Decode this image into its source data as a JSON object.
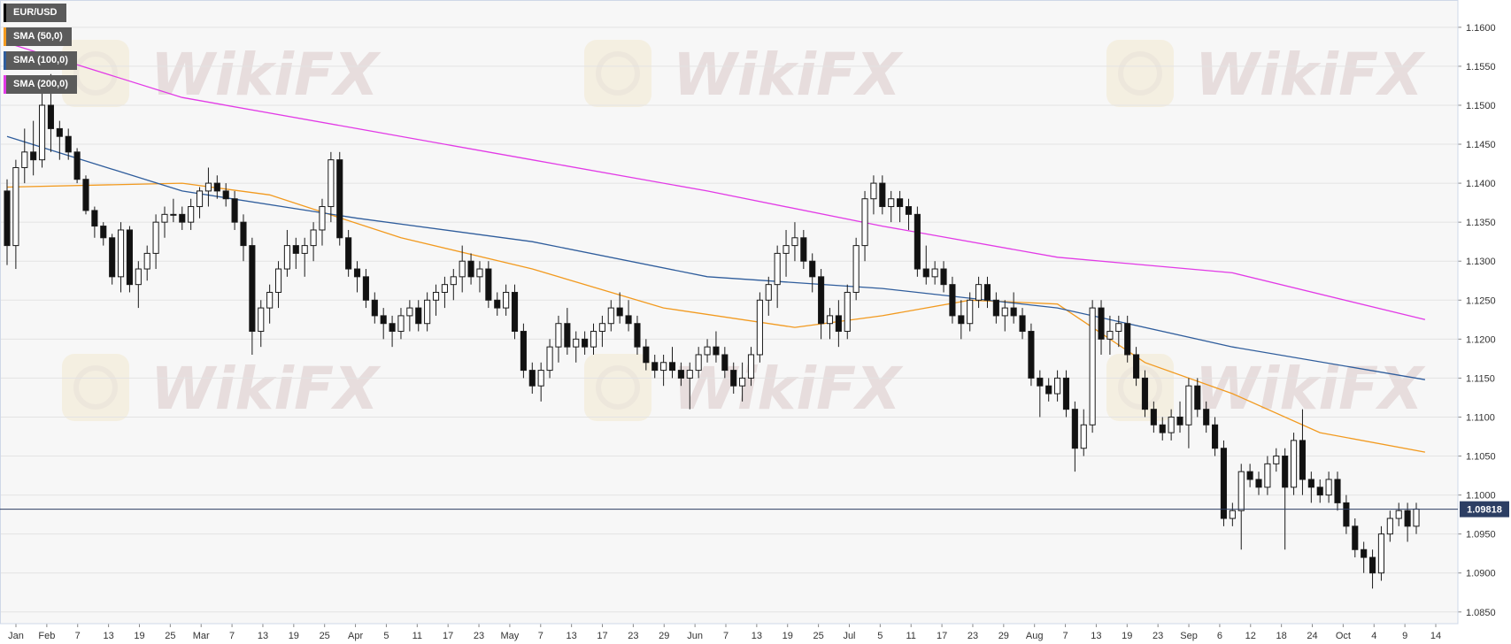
{
  "legend": [
    {
      "label": "EUR/USD",
      "color": "#000000"
    },
    {
      "label": "SMA (50,0)",
      "color": "#f29a1f"
    },
    {
      "label": "SMA (100,0)",
      "color": "#2f5d9c"
    },
    {
      "label": "SMA (200,0)",
      "color": "#e23ae6"
    }
  ],
  "watermark": {
    "text": "WikiFX"
  },
  "chart_data": {
    "type": "candlestick",
    "symbol": "EUR/USD",
    "current_price": 1.09818,
    "current_price_label": "1.09818",
    "ylim": [
      1.0835,
      1.1635
    ],
    "y_ticks": [
      "1.0850",
      "1.0900",
      "1.0950",
      "1.1000",
      "1.1050",
      "1.1100",
      "1.1150",
      "1.1200",
      "1.1250",
      "1.1300",
      "1.1350",
      "1.1400",
      "1.1450",
      "1.1500",
      "1.1550",
      "1.1600"
    ],
    "x_ticks": [
      "Jan",
      "Feb",
      "7",
      "13",
      "19",
      "25",
      "Mar",
      "7",
      "13",
      "19",
      "25",
      "Apr",
      "5",
      "11",
      "17",
      "23",
      "May",
      "7",
      "13",
      "17",
      "23",
      "29",
      "Jun",
      "7",
      "13",
      "19",
      "25",
      "Jul",
      "5",
      "11",
      "17",
      "23",
      "29",
      "Aug",
      "7",
      "13",
      "19",
      "23",
      "Sep",
      "6",
      "12",
      "18",
      "24",
      "Oct",
      "4",
      "9",
      "14"
    ],
    "candles": [
      [
        1.139,
        1.1405,
        1.1295,
        1.132
      ],
      [
        1.132,
        1.143,
        1.129,
        1.142
      ],
      [
        1.142,
        1.147,
        1.14,
        1.144
      ],
      [
        1.144,
        1.148,
        1.141,
        1.143
      ],
      [
        1.143,
        1.152,
        1.142,
        1.15
      ],
      [
        1.15,
        1.154,
        1.144,
        1.147
      ],
      [
        1.147,
        1.148,
        1.143,
        1.146
      ],
      [
        1.146,
        1.147,
        1.143,
        1.144
      ],
      [
        1.144,
        1.1445,
        1.14,
        1.1405
      ],
      [
        1.1405,
        1.141,
        1.136,
        1.1365
      ],
      [
        1.1365,
        1.137,
        1.133,
        1.1345
      ],
      [
        1.1345,
        1.135,
        1.132,
        1.133
      ],
      [
        1.133,
        1.1335,
        1.127,
        1.128
      ],
      [
        1.128,
        1.135,
        1.126,
        1.134
      ],
      [
        1.134,
        1.1345,
        1.126,
        1.127
      ],
      [
        1.127,
        1.13,
        1.124,
        1.129
      ],
      [
        1.129,
        1.132,
        1.1275,
        1.131
      ],
      [
        1.131,
        1.136,
        1.129,
        1.135
      ],
      [
        1.135,
        1.137,
        1.133,
        1.136
      ],
      [
        1.136,
        1.138,
        1.135,
        1.136
      ],
      [
        1.136,
        1.137,
        1.134,
        1.135
      ],
      [
        1.135,
        1.138,
        1.134,
        1.137
      ],
      [
        1.137,
        1.1395,
        1.1355,
        1.139
      ],
      [
        1.139,
        1.142,
        1.137,
        1.14
      ],
      [
        1.14,
        1.141,
        1.138,
        1.139
      ],
      [
        1.139,
        1.14,
        1.137,
        1.138
      ],
      [
        1.138,
        1.139,
        1.134,
        1.135
      ],
      [
        1.135,
        1.136,
        1.13,
        1.132
      ],
      [
        1.132,
        1.133,
        1.118,
        1.121
      ],
      [
        1.121,
        1.125,
        1.119,
        1.124
      ],
      [
        1.124,
        1.127,
        1.122,
        1.126
      ],
      [
        1.126,
        1.13,
        1.124,
        1.129
      ],
      [
        1.129,
        1.134,
        1.128,
        1.132
      ],
      [
        1.132,
        1.133,
        1.129,
        1.131
      ],
      [
        1.131,
        1.133,
        1.128,
        1.132
      ],
      [
        1.132,
        1.135,
        1.13,
        1.134
      ],
      [
        1.134,
        1.138,
        1.132,
        1.137
      ],
      [
        1.137,
        1.144,
        1.135,
        1.143
      ],
      [
        1.143,
        1.144,
        1.132,
        1.133
      ],
      [
        1.133,
        1.134,
        1.128,
        1.129
      ],
      [
        1.129,
        1.13,
        1.126,
        1.128
      ],
      [
        1.128,
        1.129,
        1.124,
        1.125
      ],
      [
        1.125,
        1.126,
        1.122,
        1.123
      ],
      [
        1.123,
        1.124,
        1.12,
        1.122
      ],
      [
        1.122,
        1.123,
        1.119,
        1.121
      ],
      [
        1.121,
        1.124,
        1.12,
        1.123
      ],
      [
        1.123,
        1.125,
        1.121,
        1.124
      ],
      [
        1.124,
        1.125,
        1.121,
        1.122
      ],
      [
        1.122,
        1.126,
        1.121,
        1.125
      ],
      [
        1.125,
        1.127,
        1.123,
        1.126
      ],
      [
        1.126,
        1.128,
        1.124,
        1.127
      ],
      [
        1.127,
        1.129,
        1.125,
        1.128
      ],
      [
        1.128,
        1.132,
        1.126,
        1.13
      ],
      [
        1.13,
        1.131,
        1.127,
        1.128
      ],
      [
        1.128,
        1.13,
        1.126,
        1.129
      ],
      [
        1.129,
        1.13,
        1.124,
        1.125
      ],
      [
        1.125,
        1.126,
        1.123,
        1.124
      ],
      [
        1.124,
        1.127,
        1.123,
        1.126
      ],
      [
        1.126,
        1.127,
        1.12,
        1.121
      ],
      [
        1.121,
        1.122,
        1.115,
        1.116
      ],
      [
        1.116,
        1.117,
        1.113,
        1.114
      ],
      [
        1.114,
        1.117,
        1.112,
        1.116
      ],
      [
        1.116,
        1.12,
        1.115,
        1.119
      ],
      [
        1.119,
        1.123,
        1.117,
        1.122
      ],
      [
        1.122,
        1.124,
        1.118,
        1.119
      ],
      [
        1.119,
        1.121,
        1.117,
        1.12
      ],
      [
        1.12,
        1.121,
        1.118,
        1.119
      ],
      [
        1.119,
        1.122,
        1.118,
        1.121
      ],
      [
        1.121,
        1.123,
        1.119,
        1.122
      ],
      [
        1.122,
        1.125,
        1.121,
        1.124
      ],
      [
        1.124,
        1.126,
        1.122,
        1.123
      ],
      [
        1.123,
        1.125,
        1.121,
        1.122
      ],
      [
        1.122,
        1.123,
        1.118,
        1.119
      ],
      [
        1.119,
        1.12,
        1.116,
        1.117
      ],
      [
        1.117,
        1.118,
        1.115,
        1.116
      ],
      [
        1.116,
        1.118,
        1.114,
        1.117
      ],
      [
        1.117,
        1.119,
        1.115,
        1.116
      ],
      [
        1.116,
        1.117,
        1.114,
        1.115
      ],
      [
        1.115,
        1.117,
        1.111,
        1.116
      ],
      [
        1.116,
        1.119,
        1.115,
        1.118
      ],
      [
        1.118,
        1.12,
        1.117,
        1.119
      ],
      [
        1.119,
        1.121,
        1.117,
        1.118
      ],
      [
        1.118,
        1.119,
        1.115,
        1.116
      ],
      [
        1.116,
        1.117,
        1.113,
        1.114
      ],
      [
        1.114,
        1.117,
        1.112,
        1.115
      ],
      [
        1.115,
        1.119,
        1.114,
        1.118
      ],
      [
        1.118,
        1.126,
        1.117,
        1.125
      ],
      [
        1.125,
        1.128,
        1.123,
        1.127
      ],
      [
        1.127,
        1.132,
        1.124,
        1.131
      ],
      [
        1.131,
        1.134,
        1.128,
        1.132
      ],
      [
        1.132,
        1.135,
        1.13,
        1.133
      ],
      [
        1.133,
        1.134,
        1.129,
        1.13
      ],
      [
        1.13,
        1.131,
        1.126,
        1.128
      ],
      [
        1.128,
        1.129,
        1.12,
        1.122
      ],
      [
        1.122,
        1.124,
        1.12,
        1.123
      ],
      [
        1.123,
        1.125,
        1.119,
        1.121
      ],
      [
        1.121,
        1.127,
        1.12,
        1.126
      ],
      [
        1.126,
        1.133,
        1.125,
        1.132
      ],
      [
        1.132,
        1.139,
        1.13,
        1.138
      ],
      [
        1.138,
        1.141,
        1.136,
        1.14
      ],
      [
        1.14,
        1.141,
        1.136,
        1.137
      ],
      [
        1.137,
        1.139,
        1.135,
        1.138
      ],
      [
        1.138,
        1.139,
        1.135,
        1.137
      ],
      [
        1.137,
        1.138,
        1.134,
        1.136
      ],
      [
        1.136,
        1.137,
        1.128,
        1.129
      ],
      [
        1.129,
        1.132,
        1.127,
        1.128
      ],
      [
        1.128,
        1.13,
        1.127,
        1.129
      ],
      [
        1.129,
        1.13,
        1.126,
        1.127
      ],
      [
        1.127,
        1.128,
        1.122,
        1.123
      ],
      [
        1.123,
        1.125,
        1.12,
        1.122
      ],
      [
        1.122,
        1.126,
        1.121,
        1.125
      ],
      [
        1.125,
        1.128,
        1.124,
        1.127
      ],
      [
        1.127,
        1.128,
        1.124,
        1.125
      ],
      [
        1.125,
        1.126,
        1.122,
        1.123
      ],
      [
        1.123,
        1.125,
        1.121,
        1.124
      ],
      [
        1.124,
        1.126,
        1.122,
        1.123
      ],
      [
        1.123,
        1.124,
        1.12,
        1.121
      ],
      [
        1.121,
        1.122,
        1.114,
        1.115
      ],
      [
        1.115,
        1.116,
        1.11,
        1.114
      ],
      [
        1.114,
        1.115,
        1.112,
        1.113
      ],
      [
        1.113,
        1.116,
        1.112,
        1.115
      ],
      [
        1.115,
        1.116,
        1.11,
        1.111
      ],
      [
        1.111,
        1.112,
        1.103,
        1.106
      ],
      [
        1.106,
        1.111,
        1.105,
        1.109
      ],
      [
        1.109,
        1.125,
        1.108,
        1.124
      ],
      [
        1.124,
        1.125,
        1.118,
        1.12
      ],
      [
        1.12,
        1.123,
        1.118,
        1.121
      ],
      [
        1.121,
        1.123,
        1.119,
        1.122
      ],
      [
        1.122,
        1.123,
        1.117,
        1.118
      ],
      [
        1.118,
        1.119,
        1.114,
        1.115
      ],
      [
        1.115,
        1.116,
        1.11,
        1.111
      ],
      [
        1.111,
        1.112,
        1.108,
        1.109
      ],
      [
        1.109,
        1.11,
        1.107,
        1.108
      ],
      [
        1.108,
        1.111,
        1.107,
        1.11
      ],
      [
        1.11,
        1.112,
        1.108,
        1.109
      ],
      [
        1.109,
        1.115,
        1.106,
        1.114
      ],
      [
        1.114,
        1.115,
        1.11,
        1.111
      ],
      [
        1.111,
        1.112,
        1.108,
        1.109
      ],
      [
        1.109,
        1.11,
        1.105,
        1.106
      ],
      [
        1.106,
        1.107,
        1.096,
        1.097
      ],
      [
        1.097,
        1.099,
        1.096,
        1.098
      ],
      [
        1.098,
        1.104,
        1.093,
        1.103
      ],
      [
        1.103,
        1.104,
        1.101,
        1.102
      ],
      [
        1.102,
        1.103,
        1.1,
        1.101
      ],
      [
        1.101,
        1.105,
        1.1,
        1.104
      ],
      [
        1.104,
        1.106,
        1.103,
        1.105
      ],
      [
        1.105,
        1.106,
        1.093,
        1.101
      ],
      [
        1.101,
        1.108,
        1.1,
        1.107
      ],
      [
        1.107,
        1.111,
        1.1,
        1.102
      ],
      [
        1.102,
        1.103,
        1.099,
        1.101
      ],
      [
        1.101,
        1.102,
        1.099,
        1.1
      ],
      [
        1.1,
        1.103,
        1.099,
        1.102
      ],
      [
        1.102,
        1.103,
        1.098,
        1.099
      ],
      [
        1.099,
        1.1,
        1.095,
        1.096
      ],
      [
        1.096,
        1.097,
        1.092,
        1.093
      ],
      [
        1.093,
        1.094,
        1.09,
        1.092
      ],
      [
        1.092,
        1.093,
        1.088,
        1.09
      ],
      [
        1.09,
        1.096,
        1.089,
        1.095
      ],
      [
        1.095,
        1.098,
        1.094,
        1.097
      ],
      [
        1.097,
        1.099,
        1.096,
        1.098
      ],
      [
        1.098,
        1.099,
        1.094,
        1.096
      ],
      [
        1.096,
        1.099,
        1.095,
        1.0982
      ]
    ],
    "sma": [
      {
        "name": "SMA (50,0)",
        "color": "#f29a1f",
        "points": [
          [
            0,
            1.1395
          ],
          [
            20,
            1.14
          ],
          [
            30,
            1.1385
          ],
          [
            45,
            1.133
          ],
          [
            60,
            1.129
          ],
          [
            75,
            1.124
          ],
          [
            90,
            1.1215
          ],
          [
            100,
            1.123
          ],
          [
            110,
            1.125
          ],
          [
            120,
            1.1245
          ],
          [
            130,
            1.117
          ],
          [
            140,
            1.113
          ],
          [
            150,
            1.108
          ],
          [
            162,
            1.1055
          ]
        ]
      },
      {
        "name": "SMA (100,0)",
        "color": "#2f5d9c",
        "points": [
          [
            0,
            1.146
          ],
          [
            20,
            1.139
          ],
          [
            40,
            1.1355
          ],
          [
            60,
            1.1325
          ],
          [
            80,
            1.128
          ],
          [
            100,
            1.1265
          ],
          [
            120,
            1.124
          ],
          [
            140,
            1.119
          ],
          [
            162,
            1.1148
          ]
        ]
      },
      {
        "name": "SMA (200,0)",
        "color": "#e23ae6",
        "points": [
          [
            0,
            1.158
          ],
          [
            20,
            1.151
          ],
          [
            40,
            1.147
          ],
          [
            60,
            1.143
          ],
          [
            80,
            1.139
          ],
          [
            100,
            1.1345
          ],
          [
            120,
            1.1305
          ],
          [
            140,
            1.1285
          ],
          [
            162,
            1.1225
          ]
        ]
      }
    ]
  }
}
